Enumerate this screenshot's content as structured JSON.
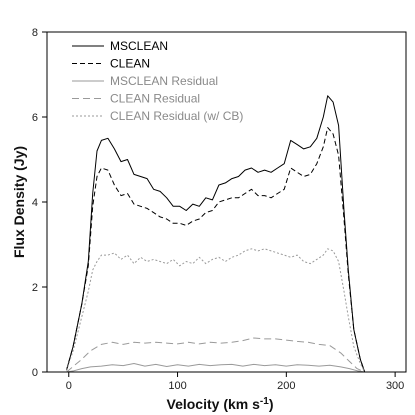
{
  "chart_data": {
    "type": "line",
    "xlabel": "Velocity (km s",
    "xlabel_sup": "-1",
    "xlabel_close": ")",
    "ylabel": "Flux Density (Jy)",
    "xlim": [
      -20,
      310
    ],
    "ylim": [
      0,
      8
    ],
    "xticks": [
      0,
      100,
      200,
      300
    ],
    "yticks": [
      0,
      2,
      4,
      6,
      8
    ],
    "xtick_labels": [
      "0",
      "100",
      "200",
      "300"
    ],
    "ytick_labels": [
      "0",
      "2",
      "4",
      "6",
      "8"
    ],
    "grid": false,
    "legend_position": "top-left",
    "series": [
      {
        "name": "MSCLEAN",
        "color": "#000000",
        "dash": "solid",
        "points": [
          [
            -2,
            0.05
          ],
          [
            4,
            0.6
          ],
          [
            12,
            1.6
          ],
          [
            18,
            2.6
          ],
          [
            22,
            4.2
          ],
          [
            26,
            5.2
          ],
          [
            30,
            5.45
          ],
          [
            36,
            5.5
          ],
          [
            42,
            5.25
          ],
          [
            48,
            4.95
          ],
          [
            54,
            5.0
          ],
          [
            60,
            4.65
          ],
          [
            66,
            4.6
          ],
          [
            72,
            4.55
          ],
          [
            78,
            4.3
          ],
          [
            84,
            4.25
          ],
          [
            90,
            4.1
          ],
          [
            96,
            3.9
          ],
          [
            102,
            3.9
          ],
          [
            108,
            3.8
          ],
          [
            114,
            3.95
          ],
          [
            120,
            3.9
          ],
          [
            126,
            4.1
          ],
          [
            132,
            4.05
          ],
          [
            138,
            4.4
          ],
          [
            144,
            4.45
          ],
          [
            150,
            4.55
          ],
          [
            156,
            4.6
          ],
          [
            162,
            4.75
          ],
          [
            168,
            4.8
          ],
          [
            174,
            4.7
          ],
          [
            180,
            4.75
          ],
          [
            186,
            4.7
          ],
          [
            192,
            4.8
          ],
          [
            198,
            4.9
          ],
          [
            204,
            5.45
          ],
          [
            210,
            5.35
          ],
          [
            216,
            5.25
          ],
          [
            222,
            5.3
          ],
          [
            228,
            5.5
          ],
          [
            234,
            6.0
          ],
          [
            238,
            6.5
          ],
          [
            243,
            6.35
          ],
          [
            248,
            5.8
          ],
          [
            253,
            3.8
          ],
          [
            257,
            2.4
          ],
          [
            262,
            1.0
          ],
          [
            268,
            0.3
          ],
          [
            272,
            0.0
          ]
        ]
      },
      {
        "name": "CLEAN",
        "color": "#000000",
        "dash": "5,3",
        "points": [
          [
            -2,
            0.05
          ],
          [
            4,
            0.6
          ],
          [
            12,
            1.6
          ],
          [
            18,
            2.5
          ],
          [
            22,
            3.9
          ],
          [
            26,
            4.6
          ],
          [
            30,
            4.8
          ],
          [
            36,
            4.75
          ],
          [
            42,
            4.4
          ],
          [
            48,
            4.15
          ],
          [
            54,
            4.2
          ],
          [
            60,
            3.95
          ],
          [
            66,
            3.9
          ],
          [
            72,
            3.85
          ],
          [
            78,
            3.75
          ],
          [
            84,
            3.65
          ],
          [
            90,
            3.6
          ],
          [
            96,
            3.5
          ],
          [
            102,
            3.5
          ],
          [
            108,
            3.45
          ],
          [
            114,
            3.55
          ],
          [
            120,
            3.6
          ],
          [
            126,
            3.75
          ],
          [
            132,
            3.8
          ],
          [
            138,
            4.0
          ],
          [
            144,
            4.05
          ],
          [
            150,
            4.1
          ],
          [
            156,
            4.1
          ],
          [
            162,
            4.2
          ],
          [
            168,
            4.3
          ],
          [
            174,
            4.15
          ],
          [
            180,
            4.15
          ],
          [
            186,
            4.1
          ],
          [
            192,
            4.2
          ],
          [
            198,
            4.3
          ],
          [
            204,
            4.8
          ],
          [
            210,
            4.7
          ],
          [
            216,
            4.6
          ],
          [
            222,
            4.65
          ],
          [
            228,
            4.9
          ],
          [
            234,
            5.3
          ],
          [
            238,
            5.75
          ],
          [
            243,
            5.6
          ],
          [
            248,
            5.1
          ],
          [
            253,
            3.6
          ],
          [
            257,
            2.3
          ],
          [
            262,
            1.0
          ],
          [
            268,
            0.3
          ],
          [
            272,
            0.0
          ]
        ]
      },
      {
        "name": "MSCLEAN Residual",
        "color": "#9a9a9a",
        "dash": "solid",
        "points": [
          [
            -2,
            0.0
          ],
          [
            5,
            0.03
          ],
          [
            12,
            0.08
          ],
          [
            20,
            0.12
          ],
          [
            30,
            0.14
          ],
          [
            40,
            0.17
          ],
          [
            50,
            0.15
          ],
          [
            60,
            0.2
          ],
          [
            70,
            0.14
          ],
          [
            80,
            0.18
          ],
          [
            90,
            0.13
          ],
          [
            100,
            0.17
          ],
          [
            110,
            0.14
          ],
          [
            120,
            0.18
          ],
          [
            130,
            0.15
          ],
          [
            140,
            0.17
          ],
          [
            150,
            0.18
          ],
          [
            160,
            0.14
          ],
          [
            170,
            0.18
          ],
          [
            180,
            0.15
          ],
          [
            190,
            0.17
          ],
          [
            200,
            0.14
          ],
          [
            210,
            0.17
          ],
          [
            220,
            0.16
          ],
          [
            230,
            0.14
          ],
          [
            240,
            0.16
          ],
          [
            250,
            0.12
          ],
          [
            258,
            0.08
          ],
          [
            265,
            0.03
          ],
          [
            272,
            0.0
          ]
        ]
      },
      {
        "name": "CLEAN Residual",
        "color": "#9a9a9a",
        "dash": "7,4",
        "points": [
          [
            -2,
            0.0
          ],
          [
            5,
            0.15
          ],
          [
            12,
            0.3
          ],
          [
            20,
            0.5
          ],
          [
            30,
            0.65
          ],
          [
            40,
            0.7
          ],
          [
            50,
            0.65
          ],
          [
            60,
            0.7
          ],
          [
            70,
            0.68
          ],
          [
            80,
            0.7
          ],
          [
            90,
            0.68
          ],
          [
            100,
            0.66
          ],
          [
            110,
            0.7
          ],
          [
            120,
            0.66
          ],
          [
            130,
            0.7
          ],
          [
            140,
            0.68
          ],
          [
            150,
            0.7
          ],
          [
            160,
            0.74
          ],
          [
            170,
            0.8
          ],
          [
            180,
            0.78
          ],
          [
            190,
            0.78
          ],
          [
            200,
            0.75
          ],
          [
            210,
            0.72
          ],
          [
            220,
            0.7
          ],
          [
            230,
            0.65
          ],
          [
            240,
            0.62
          ],
          [
            250,
            0.45
          ],
          [
            258,
            0.25
          ],
          [
            265,
            0.08
          ],
          [
            272,
            0.0
          ]
        ]
      },
      {
        "name": "CLEAN Residual (w/ CB)",
        "color": "#9a9a9a",
        "dash": "2,2",
        "points": [
          [
            -2,
            0.03
          ],
          [
            4,
            0.5
          ],
          [
            12,
            1.3
          ],
          [
            18,
            1.9
          ],
          [
            22,
            2.4
          ],
          [
            26,
            2.6
          ],
          [
            30,
            2.75
          ],
          [
            36,
            2.75
          ],
          [
            42,
            2.8
          ],
          [
            48,
            2.65
          ],
          [
            54,
            2.75
          ],
          [
            60,
            2.55
          ],
          [
            66,
            2.7
          ],
          [
            72,
            2.6
          ],
          [
            78,
            2.65
          ],
          [
            84,
            2.6
          ],
          [
            90,
            2.55
          ],
          [
            96,
            2.65
          ],
          [
            102,
            2.5
          ],
          [
            108,
            2.6
          ],
          [
            114,
            2.55
          ],
          [
            120,
            2.7
          ],
          [
            126,
            2.55
          ],
          [
            132,
            2.65
          ],
          [
            138,
            2.7
          ],
          [
            144,
            2.6
          ],
          [
            150,
            2.7
          ],
          [
            156,
            2.75
          ],
          [
            162,
            2.85
          ],
          [
            168,
            2.9
          ],
          [
            174,
            2.85
          ],
          [
            180,
            2.9
          ],
          [
            186,
            2.85
          ],
          [
            192,
            2.8
          ],
          [
            198,
            2.75
          ],
          [
            204,
            2.7
          ],
          [
            210,
            2.75
          ],
          [
            216,
            2.6
          ],
          [
            222,
            2.55
          ],
          [
            228,
            2.65
          ],
          [
            234,
            2.75
          ],
          [
            238,
            2.9
          ],
          [
            243,
            2.85
          ],
          [
            248,
            2.6
          ],
          [
            253,
            1.9
          ],
          [
            257,
            1.3
          ],
          [
            262,
            0.6
          ],
          [
            268,
            0.2
          ],
          [
            272,
            0.0
          ]
        ]
      }
    ]
  }
}
